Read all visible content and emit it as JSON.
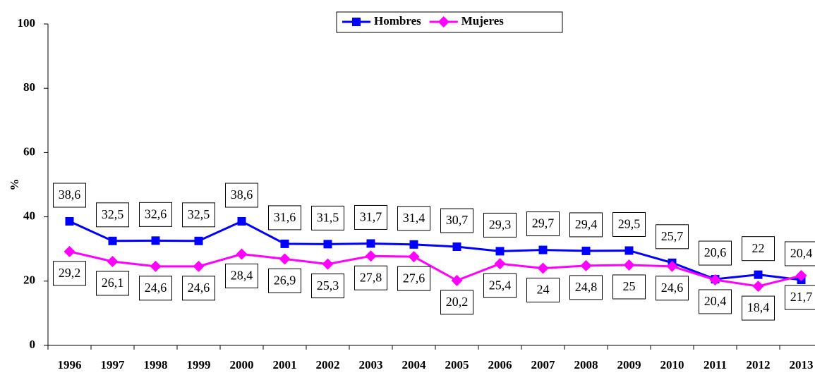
{
  "chart_data": {
    "type": "line",
    "y_label": "%",
    "categories": [
      "1996",
      "1997",
      "1998",
      "1999",
      "2000",
      "2001",
      "2002",
      "2003",
      "2004",
      "2005",
      "2006",
      "2007",
      "2008",
      "2009",
      "2010",
      "2011",
      "2012",
      "2013"
    ],
    "series": [
      {
        "name": "Hombres",
        "color": "#0000ff",
        "marker": "square",
        "values": [
          38.6,
          32.5,
          32.6,
          32.5,
          38.6,
          31.6,
          31.5,
          31.7,
          31.4,
          30.7,
          29.3,
          29.7,
          29.4,
          29.5,
          25.7,
          20.6,
          22,
          20.4
        ],
        "value_labels": [
          "38,6",
          "32,5",
          "32,6",
          "32,5",
          "38,6",
          "31,6",
          "31,5",
          "31,7",
          "31,4",
          "30,7",
          "29,3",
          "29,7",
          "29,4",
          "29,5",
          "25,7",
          "20,6",
          "22",
          "20,4"
        ]
      },
      {
        "name": "Mujeres",
        "color": "#ff00ff",
        "marker": "diamond",
        "values": [
          29.2,
          26.1,
          24.6,
          24.6,
          28.4,
          26.9,
          25.3,
          27.8,
          27.6,
          20.2,
          25.4,
          24,
          24.8,
          25,
          24.6,
          20.4,
          18.4,
          21.7
        ],
        "value_labels": [
          "29,2",
          "26,1",
          "24,6",
          "24,6",
          "28,4",
          "26,9",
          "25,3",
          "27,8",
          "27,6",
          "20,2",
          "25,4",
          "24",
          "24,8",
          "25",
          "24,6",
          "20,4",
          "18,4",
          "21,7"
        ]
      }
    ],
    "ylim": [
      0,
      100
    ],
    "yticks": [
      0,
      20,
      40,
      60,
      80,
      100
    ],
    "legend": "top"
  }
}
